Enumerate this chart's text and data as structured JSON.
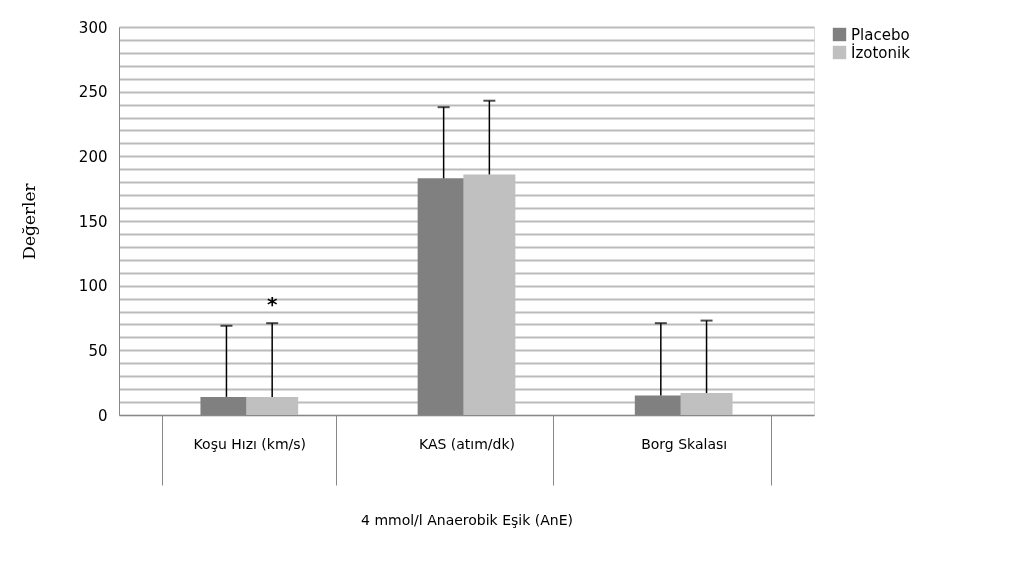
{
  "chart_data": {
    "type": "bar",
    "categories": [
      "Koşu Hızı (km/s)",
      "KAS (atım/dk)",
      "Borg Skalası"
    ],
    "xlabel": "4 mmol/l Anaerobik Eşik (AnE)",
    "ylabel": "Değerler",
    "series": [
      {
        "name": "Placebo",
        "color": "#808080",
        "values": [
          14,
          183,
          15
        ],
        "errors": [
          [
            14,
            69
          ],
          [
            183,
            238
          ],
          [
            15,
            71
          ]
        ]
      },
      {
        "name": "İzotonik",
        "color": "#c0c0c0",
        "values": [
          14,
          186,
          17
        ],
        "errors": [
          [
            14,
            71
          ],
          [
            186,
            243
          ],
          [
            17,
            73
          ]
        ]
      }
    ],
    "ylim": [
      0,
      300
    ],
    "yticks": [
      0,
      {
        "value": 10,
        "label": null
      },
      {
        "value": 20,
        "label": null
      },
      {
        "value": 30,
        "label": null
      },
      {
        "value": 40,
        "label": null
      },
      50,
      {
        "value": 60,
        "label": null
      },
      {
        "value": 70,
        "label": null
      },
      {
        "value": 80,
        "label": null
      },
      {
        "value": 90,
        "label": null
      },
      100,
      {
        "value": 110,
        "label": null
      },
      {
        "value": 120,
        "label": null
      },
      {
        "value": 130,
        "label": null
      },
      {
        "value": 140,
        "label": null
      },
      150,
      {
        "value": 160,
        "label": null
      },
      {
        "value": 170,
        "label": null
      },
      {
        "value": 180,
        "label": null
      },
      {
        "value": 190,
        "label": null
      },
      200,
      {
        "value": 210,
        "label": null
      },
      {
        "value": 220,
        "label": null
      },
      {
        "value": 230,
        "label": null
      },
      {
        "value": 240,
        "label": null
      },
      250,
      {
        "value": 260,
        "label": null
      },
      {
        "value": 270,
        "label": null
      },
      {
        "value": 280,
        "label": null
      },
      {
        "value": 290,
        "label": null
      },
      300
    ],
    "grid": "y",
    "legend": "right",
    "annotations": [
      "*"
    ]
  }
}
